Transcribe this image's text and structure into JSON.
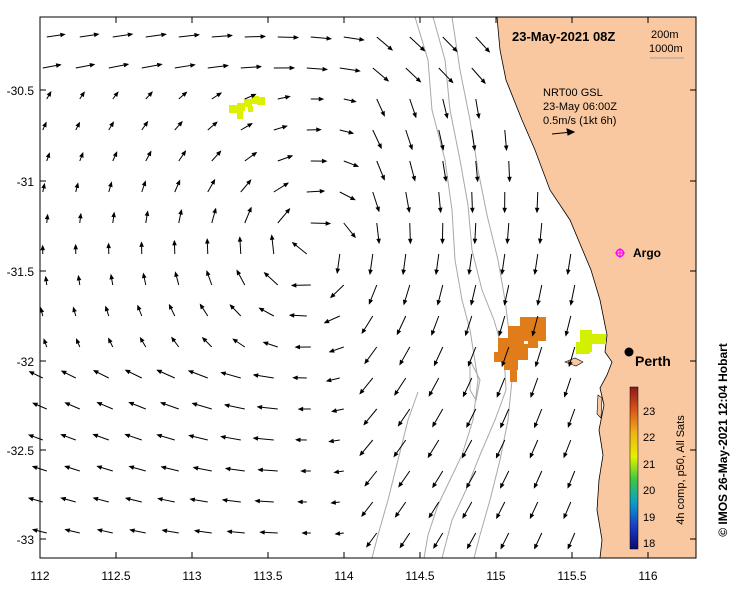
{
  "title": "23-May-2021 08Z",
  "depth_legend": [
    "200m",
    "1000m"
  ],
  "info": {
    "line1": "NRT00 GSL",
    "line2": "23-May 06:00Z",
    "line3": "0.5m/s (1kt 6h)"
  },
  "places": {
    "argo": "Argo",
    "perth": "Perth"
  },
  "colorbar": {
    "title": "4h comp, p50, All Sats",
    "ticks": [
      "23",
      "22",
      "21",
      "20",
      "19",
      "18"
    ],
    "gradient": [
      "#8b1a1a",
      "#d9541a",
      "#f0b018",
      "#e6f000",
      "#3ec83e",
      "#0aa0c8",
      "#1a3cc8",
      "#0a0a6e"
    ]
  },
  "credit": "© IMOS 26-May-2021 12:04 Hobart",
  "axes": {
    "x_ticks": [
      "112",
      "112.5",
      "113",
      "113.5",
      "114",
      "114.5",
      "115",
      "115.5",
      "116"
    ],
    "y_ticks": [
      "-30.5",
      "-31",
      "-31.5",
      "-32",
      "-32.5",
      "-33"
    ],
    "lon_range": [
      112,
      116.3
    ],
    "lat_range": [
      -33.1,
      -30.1
    ]
  },
  "colors": {
    "land": "#fac8a0",
    "sea": "#ffffff",
    "isobath": "#a0a0a0",
    "argo": "#ff00ff",
    "sst_low": "#d2f000",
    "sst_high": "#e07818"
  }
}
